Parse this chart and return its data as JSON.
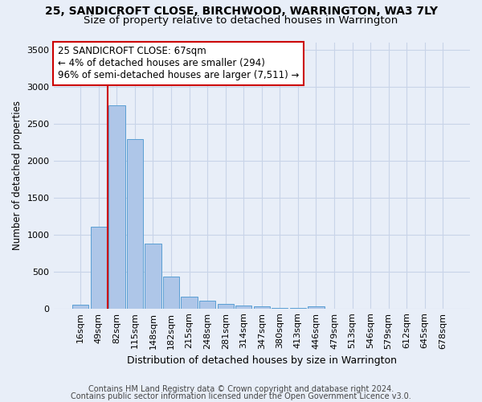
{
  "title1": "25, SANDICROFT CLOSE, BIRCHWOOD, WARRINGTON, WA3 7LY",
  "title2": "Size of property relative to detached houses in Warrington",
  "xlabel": "Distribution of detached houses by size in Warrington",
  "ylabel": "Number of detached properties",
  "categories": [
    "16sqm",
    "49sqm",
    "82sqm",
    "115sqm",
    "148sqm",
    "182sqm",
    "215sqm",
    "248sqm",
    "281sqm",
    "314sqm",
    "347sqm",
    "380sqm",
    "413sqm",
    "446sqm",
    "479sqm",
    "513sqm",
    "546sqm",
    "579sqm",
    "612sqm",
    "645sqm",
    "678sqm"
  ],
  "values": [
    50,
    1100,
    2750,
    2290,
    880,
    430,
    165,
    100,
    65,
    35,
    30,
    10,
    8,
    25,
    0,
    0,
    0,
    0,
    0,
    0,
    0
  ],
  "bar_color": "#aec6e8",
  "bar_edge_color": "#5a9fd4",
  "vline_x": 1.5,
  "vline_color": "#cc0000",
  "annotation_text": "25 SANDICROFT CLOSE: 67sqm\n← 4% of detached houses are smaller (294)\n96% of semi-detached houses are larger (7,511) →",
  "annotation_box_color": "#ffffff",
  "annotation_box_edge_color": "#cc0000",
  "ylim": [
    0,
    3600
  ],
  "yticks": [
    0,
    500,
    1000,
    1500,
    2000,
    2500,
    3000,
    3500
  ],
  "footer1": "Contains HM Land Registry data © Crown copyright and database right 2024.",
  "footer2": "Contains public sector information licensed under the Open Government Licence v3.0.",
  "bg_color": "#e8eef8",
  "plot_bg_color": "#e8eef8",
  "grid_color": "#c8d4e8",
  "title1_fontsize": 10,
  "title2_fontsize": 9.5,
  "xlabel_fontsize": 9,
  "ylabel_fontsize": 8.5,
  "tick_fontsize": 8,
  "annotation_fontsize": 8.5,
  "footer_fontsize": 7
}
